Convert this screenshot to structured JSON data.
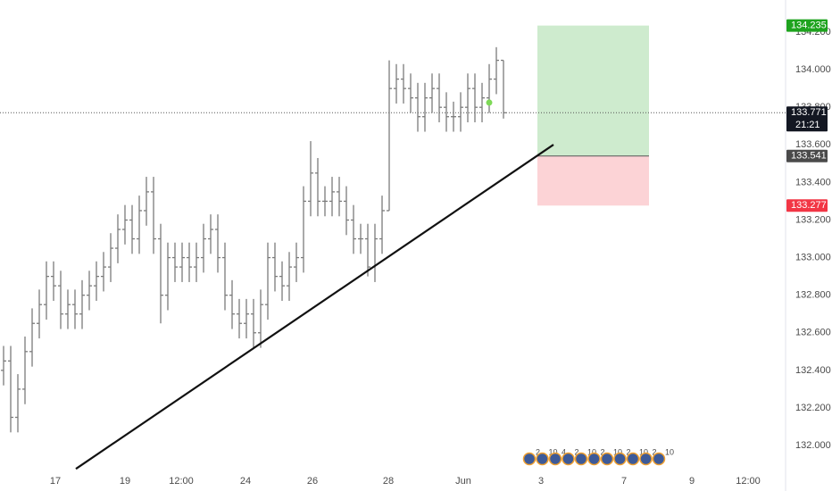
{
  "chart_data": {
    "type": "ohlc",
    "color": "#7b7b7b",
    "open": [
      132.4,
      132.45,
      132.15,
      132.3,
      132.5,
      132.65,
      132.75,
      132.9,
      132.85,
      132.7,
      132.75,
      132.7,
      132.8,
      132.85,
      132.9,
      132.95,
      133.05,
      133.15,
      133.2,
      133.1,
      133.25,
      133.35,
      133.1,
      132.8,
      133.0,
      132.95,
      133.0,
      132.95,
      133.0,
      133.1,
      133.15,
      133.0,
      132.8,
      132.7,
      132.65,
      132.7,
      132.6,
      132.75,
      133.0,
      132.9,
      132.85,
      132.95,
      133.0,
      133.3,
      133.45,
      133.3,
      133.3,
      133.35,
      133.3,
      133.2,
      133.1,
      133.1,
      132.95,
      133.1,
      133.25,
      133.9,
      133.95,
      133.9,
      133.85,
      133.75,
      133.85,
      133.9,
      133.8,
      133.75,
      133.75,
      133.8,
      133.9,
      133.8,
      133.85,
      133.95,
      134.05
    ],
    "high": [
      132.53,
      132.53,
      132.38,
      132.58,
      132.73,
      132.83,
      132.98,
      132.98,
      132.93,
      132.83,
      132.83,
      132.88,
      132.93,
      132.98,
      133.03,
      133.13,
      133.23,
      133.28,
      133.28,
      133.33,
      133.43,
      133.43,
      133.18,
      133.08,
      133.08,
      133.08,
      133.08,
      133.08,
      133.18,
      133.23,
      133.23,
      133.08,
      132.88,
      132.78,
      132.78,
      132.78,
      132.83,
      133.08,
      133.08,
      132.98,
      133.03,
      133.08,
      133.38,
      133.62,
      133.53,
      133.38,
      133.43,
      133.43,
      133.38,
      133.28,
      133.18,
      133.18,
      133.18,
      133.33,
      134.05,
      134.03,
      134.03,
      133.98,
      133.93,
      133.93,
      133.98,
      133.98,
      133.88,
      133.83,
      133.88,
      133.98,
      133.98,
      133.93,
      134.03,
      134.12,
      134.05
    ],
    "low": [
      132.32,
      132.07,
      132.07,
      132.22,
      132.42,
      132.57,
      132.67,
      132.77,
      132.62,
      132.62,
      132.62,
      132.62,
      132.72,
      132.77,
      132.82,
      132.87,
      132.97,
      133.07,
      133.02,
      133.02,
      133.17,
      133.02,
      132.65,
      132.72,
      132.87,
      132.87,
      132.87,
      132.87,
      132.92,
      133.02,
      132.92,
      132.72,
      132.62,
      132.57,
      132.57,
      132.52,
      132.52,
      132.67,
      132.82,
      132.77,
      132.77,
      132.87,
      132.92,
      133.22,
      133.22,
      133.22,
      133.22,
      133.22,
      133.12,
      133.02,
      133.02,
      132.9,
      132.87,
      133.02,
      133.25,
      133.82,
      133.82,
      133.77,
      133.67,
      133.67,
      133.77,
      133.72,
      133.67,
      133.67,
      133.67,
      133.72,
      133.72,
      133.72,
      133.77,
      133.87,
      133.74
    ],
    "close": [
      132.45,
      132.15,
      132.3,
      132.5,
      132.65,
      132.75,
      132.9,
      132.85,
      132.7,
      132.75,
      132.7,
      132.8,
      132.85,
      132.9,
      132.95,
      133.05,
      133.15,
      133.2,
      133.1,
      133.25,
      133.35,
      133.1,
      132.8,
      133.0,
      132.95,
      133.0,
      132.95,
      133.0,
      133.1,
      133.15,
      133.0,
      132.8,
      132.7,
      132.65,
      132.7,
      132.6,
      132.75,
      133.0,
      132.9,
      132.85,
      132.95,
      133.0,
      133.3,
      133.45,
      133.3,
      133.3,
      133.35,
      133.3,
      133.2,
      133.1,
      133.1,
      132.95,
      133.1,
      133.25,
      133.9,
      133.95,
      133.9,
      133.85,
      133.75,
      133.85,
      133.9,
      133.8,
      133.75,
      133.75,
      133.8,
      133.9,
      133.8,
      133.85,
      133.95,
      134.05,
      133.771
    ],
    "xlim": [
      -0.5,
      109.5
    ],
    "xticks": [
      {
        "value": 7.25,
        "label": "17"
      },
      {
        "value": 17,
        "label": "19"
      },
      {
        "value": 24.875,
        "label": "12:00"
      },
      {
        "value": 33.875,
        "label": "24"
      },
      {
        "value": 43.25,
        "label": "26"
      },
      {
        "value": 53.875,
        "label": "28"
      },
      {
        "value": 64.375,
        "label": "Jun"
      },
      {
        "value": 75.25,
        "label": "3"
      },
      {
        "value": 86.875,
        "label": "7"
      },
      {
        "value": 96.375,
        "label": "9"
      },
      {
        "value": 104.25,
        "label": "12:00"
      }
    ],
    "ylim": [
      131.853,
      134.371
    ],
    "yticks": [
      {
        "value": 132,
        "label": "132.000"
      },
      {
        "value": 132.2,
        "label": "132.200"
      },
      {
        "value": 132.4,
        "label": "132.400"
      },
      {
        "value": 132.6,
        "label": "132.600"
      },
      {
        "value": 132.8,
        "label": "132.800"
      },
      {
        "value": 133,
        "label": "133.000"
      },
      {
        "value": 133.2,
        "label": "133.200"
      },
      {
        "value": 133.4,
        "label": "133.400"
      },
      {
        "value": 133.6,
        "label": "133.600"
      },
      {
        "value": 133.8,
        "label": "133.800"
      },
      {
        "value": 134,
        "label": "134.000"
      },
      {
        "value": 134.2,
        "label": "134.200"
      }
    ],
    "last_price": 133.771,
    "countdown": "21:21",
    "marker": {
      "x": 68,
      "y": 133.825,
      "color": "#7ed957"
    },
    "trendline": {
      "x": [
        10.125,
        77
      ],
      "y": [
        131.876,
        133.601
      ],
      "color": "#111111"
    },
    "position": {
      "start": 74.75,
      "end": 90.375,
      "target": 134.235,
      "entry": 133.541,
      "stop": 133.277,
      "profit_color": "#1ea31e",
      "loss_color": "#f23645"
    },
    "events": [
      "2",
      "10",
      "4",
      "2",
      "10",
      "2",
      "10",
      "2",
      "10",
      "2",
      "10"
    ]
  }
}
